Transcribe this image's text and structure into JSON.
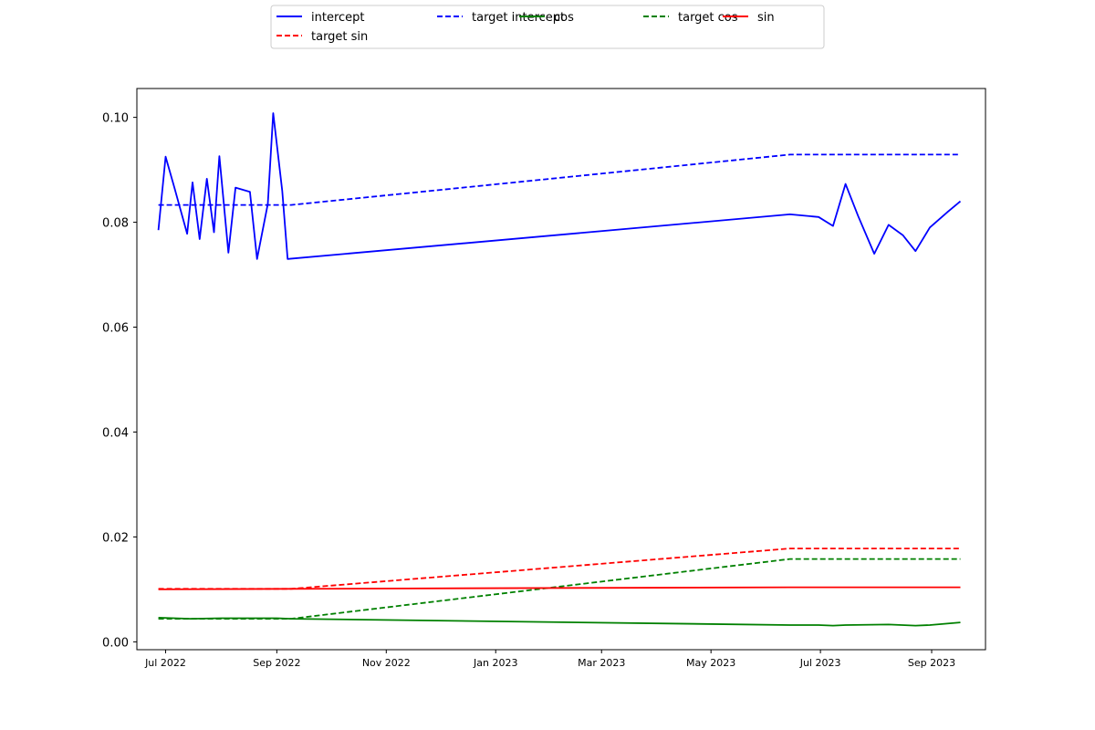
{
  "chart_data": {
    "type": "line",
    "title": "",
    "xlabel": "",
    "ylabel": "",
    "x_axis": {
      "type": "date",
      "range": [
        "2022-06-15",
        "2023-10-01"
      ],
      "ticks": [
        {
          "date": "2022-07-01",
          "label": "Jul 2022"
        },
        {
          "date": "2022-09-01",
          "label": "Sep 2022"
        },
        {
          "date": "2022-11-01",
          "label": "Nov 2022"
        },
        {
          "date": "2023-01-01",
          "label": "Jan 2023"
        },
        {
          "date": "2023-03-01",
          "label": "Mar 2023"
        },
        {
          "date": "2023-05-01",
          "label": "May 2023"
        },
        {
          "date": "2023-07-01",
          "label": "Jul 2023"
        },
        {
          "date": "2023-09-01",
          "label": "Sep 2023"
        }
      ]
    },
    "y_axis": {
      "range": [
        -0.0015,
        0.1055
      ],
      "ticks": [
        {
          "value": 0.0,
          "label": "0.00"
        },
        {
          "value": 0.02,
          "label": "0.02"
        },
        {
          "value": 0.04,
          "label": "0.04"
        },
        {
          "value": 0.06,
          "label": "0.06"
        },
        {
          "value": 0.08,
          "label": "0.08"
        },
        {
          "value": 0.1,
          "label": "0.10"
        }
      ]
    },
    "grid": false,
    "legend": {
      "placement": "top-center",
      "columns": 5
    },
    "series": [
      {
        "name": "intercept",
        "color": "#0000ff",
        "style": "solid",
        "points": [
          [
            "2022-06-27",
            0.0785
          ],
          [
            "2022-07-01",
            0.0925
          ],
          [
            "2022-07-06",
            0.0865
          ],
          [
            "2022-07-13",
            0.0778
          ],
          [
            "2022-07-16",
            0.0876
          ],
          [
            "2022-07-20",
            0.0768
          ],
          [
            "2022-07-24",
            0.0883
          ],
          [
            "2022-07-28",
            0.0781
          ],
          [
            "2022-07-31",
            0.0926
          ],
          [
            "2022-08-05",
            0.0742
          ],
          [
            "2022-08-09",
            0.0866
          ],
          [
            "2022-08-17",
            0.0858
          ],
          [
            "2022-08-21",
            0.073
          ],
          [
            "2022-08-27",
            0.0835
          ],
          [
            "2022-08-30",
            0.1008
          ],
          [
            "2022-09-04",
            0.086
          ],
          [
            "2022-09-07",
            0.073
          ],
          [
            "2023-06-14",
            0.0815
          ],
          [
            "2023-06-30",
            0.081
          ],
          [
            "2023-07-08",
            0.0793
          ],
          [
            "2023-07-15",
            0.0873
          ],
          [
            "2023-07-22",
            0.0812
          ],
          [
            "2023-07-31",
            0.074
          ],
          [
            "2023-08-08",
            0.0795
          ],
          [
            "2023-08-16",
            0.0775
          ],
          [
            "2023-08-23",
            0.0745
          ],
          [
            "2023-08-31",
            0.079
          ],
          [
            "2023-09-10",
            0.082
          ],
          [
            "2023-09-17",
            0.084
          ]
        ]
      },
      {
        "name": "target intercept",
        "color": "#0000ff",
        "style": "dashed",
        "points": [
          [
            "2022-06-27",
            0.0833
          ],
          [
            "2022-09-09",
            0.0833
          ],
          [
            "2023-06-14",
            0.0929
          ],
          [
            "2023-09-17",
            0.0929
          ]
        ]
      },
      {
        "name": "cos",
        "color": "#008000",
        "style": "solid",
        "points": [
          [
            "2022-06-27",
            0.0046
          ],
          [
            "2022-07-15",
            0.0044
          ],
          [
            "2022-08-01",
            0.0045
          ],
          [
            "2022-09-01",
            0.0045
          ],
          [
            "2022-09-09",
            0.0044
          ],
          [
            "2023-06-14",
            0.0032
          ],
          [
            "2023-06-30",
            0.0032
          ],
          [
            "2023-07-08",
            0.0031
          ],
          [
            "2023-07-15",
            0.0032
          ],
          [
            "2023-08-08",
            0.0033
          ],
          [
            "2023-08-23",
            0.0031
          ],
          [
            "2023-08-31",
            0.0032
          ],
          [
            "2023-09-17",
            0.0037
          ]
        ]
      },
      {
        "name": "target cos",
        "color": "#008000",
        "style": "dashed",
        "points": [
          [
            "2022-06-27",
            0.0044
          ],
          [
            "2022-09-09",
            0.0044
          ],
          [
            "2023-06-14",
            0.0158
          ],
          [
            "2023-09-17",
            0.0158
          ]
        ]
      },
      {
        "name": "sin",
        "color": "#ff0000",
        "style": "solid",
        "points": [
          [
            "2022-06-27",
            0.01
          ],
          [
            "2022-09-09",
            0.0101
          ],
          [
            "2023-06-14",
            0.0104
          ],
          [
            "2023-09-17",
            0.0104
          ]
        ]
      },
      {
        "name": "target sin",
        "color": "#ff0000",
        "style": "dashed",
        "points": [
          [
            "2022-06-27",
            0.0101
          ],
          [
            "2022-09-09",
            0.0101
          ],
          [
            "2023-06-14",
            0.0178
          ],
          [
            "2023-09-17",
            0.0178
          ]
        ]
      }
    ]
  }
}
